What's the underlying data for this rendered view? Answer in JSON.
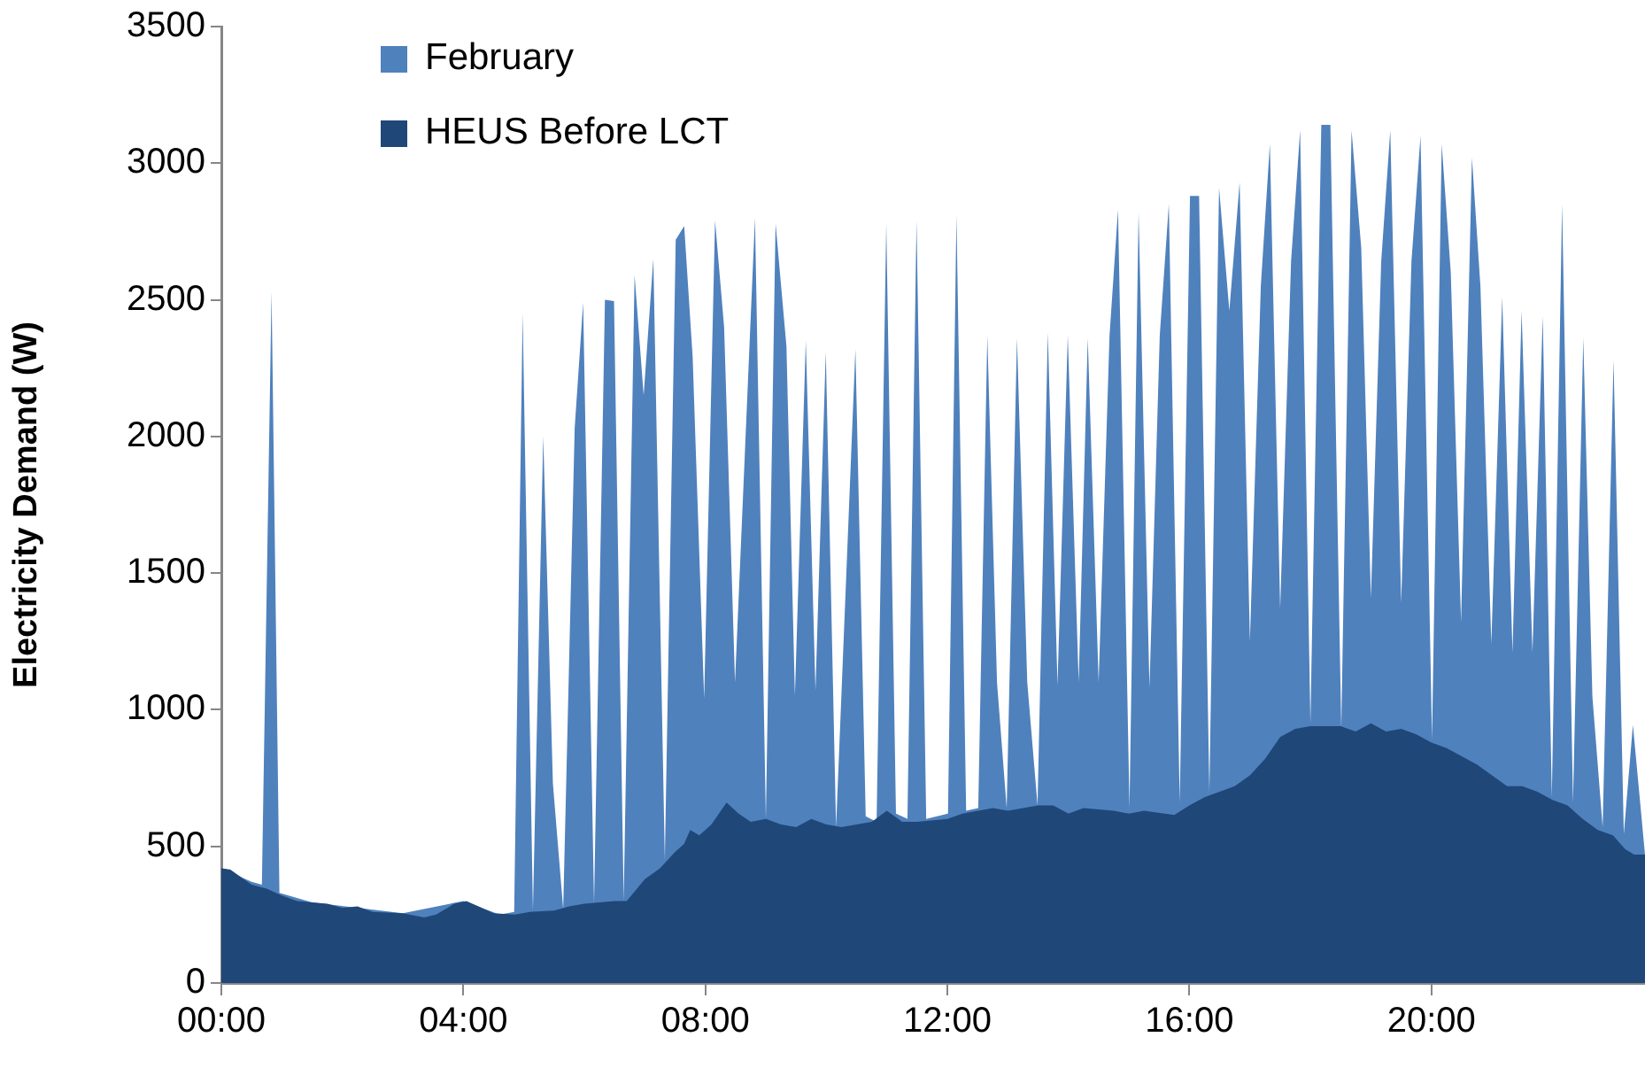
{
  "chart_data": {
    "type": "area",
    "ylabel": "Electricity Demand (W)",
    "xlim": [
      0,
      23.53
    ],
    "ylim": [
      0,
      3500
    ],
    "xticks": [
      {
        "value": 0,
        "label": "00:00"
      },
      {
        "value": 4,
        "label": "04:00"
      },
      {
        "value": 8,
        "label": "08:00"
      },
      {
        "value": 12,
        "label": "12:00"
      },
      {
        "value": 16,
        "label": "16:00"
      },
      {
        "value": 20,
        "label": "20:00"
      }
    ],
    "yticks": [
      0,
      500,
      1000,
      1500,
      2000,
      2500,
      3000,
      3500
    ],
    "grid": false,
    "legend": "top left",
    "marker": "none",
    "series": [
      {
        "name": "February",
        "color": "#4f81bd",
        "x": [
          0,
          0.5,
          0.67,
          0.83,
          0.96,
          1.5,
          3,
          4,
          4.6,
          4.84,
          4.98,
          5.15,
          5.32,
          5.48,
          5.65,
          5.84,
          5.98,
          6.16,
          6.34,
          6.49,
          6.65,
          6.83,
          6.98,
          7.14,
          7.33,
          7.51,
          7.65,
          7.79,
          7.98,
          8.16,
          8.31,
          8.49,
          8.82,
          9.0,
          9.16,
          9.34,
          9.48,
          9.66,
          9.82,
          9.99,
          10.16,
          10.48,
          10.65,
          10.83,
          10.99,
          11.15,
          11.34,
          11.49,
          11.65,
          12.01,
          12.15,
          12.31,
          12.51,
          12.66,
          12.82,
          12.98,
          13.15,
          13.32,
          13.49,
          13.66,
          13.82,
          13.99,
          14.17,
          14.32,
          14.5,
          14.68,
          14.82,
          15.01,
          15.16,
          15.34,
          15.51,
          15.66,
          15.84,
          16.01,
          16.16,
          16.33,
          16.49,
          16.66,
          16.83,
          17.0,
          17.18,
          17.33,
          17.5,
          17.68,
          17.83,
          18.0,
          18.18,
          18.33,
          18.51,
          18.68,
          18.84,
          19.0,
          19.17,
          19.32,
          19.5,
          19.67,
          19.82,
          20.01,
          20.17,
          20.32,
          20.49,
          20.67,
          20.81,
          20.99,
          21.17,
          21.34,
          21.49,
          21.67,
          21.84,
          21.99,
          22.16,
          22.34,
          22.51,
          22.66,
          22.83,
          23.01,
          23.18,
          23.33,
          23.53
        ],
        "values": [
          420,
          370,
          360,
          2530,
          330,
          295,
          255,
          300,
          250,
          260,
          2450,
          265,
          2000,
          730,
          270,
          2030,
          2490,
          290,
          2500,
          2495,
          300,
          2590,
          2150,
          2650,
          450,
          2720,
          2770,
          2290,
          1040,
          2790,
          2400,
          1100,
          2800,
          600,
          2780,
          2330,
          1050,
          2350,
          1070,
          2310,
          570,
          2320,
          610,
          590,
          2780,
          620,
          600,
          2790,
          600,
          620,
          2810,
          630,
          640,
          2370,
          1100,
          640,
          2360,
          1100,
          650,
          2380,
          1090,
          2370,
          1100,
          2360,
          1100,
          2370,
          2830,
          640,
          2820,
          1080,
          2370,
          2850,
          660,
          2880,
          2880,
          700,
          2910,
          2460,
          2930,
          1250,
          2550,
          3070,
          1370,
          2640,
          3120,
          950,
          3140,
          3140,
          930,
          3120,
          2690,
          1410,
          2640,
          3120,
          1390,
          2640,
          3100,
          890,
          3070,
          2600,
          1320,
          3020,
          2550,
          1240,
          2510,
          1210,
          2460,
          1210,
          2440,
          680,
          2850,
          660,
          2360,
          1050,
          570,
          2280,
          545,
          945,
          470
        ]
      },
      {
        "name": "HEUS Before LCT",
        "color": "#1f4778",
        "x": [
          0,
          0.15,
          0.5,
          0.75,
          1,
          1.25,
          1.75,
          2,
          2.25,
          2.5,
          3,
          3.35,
          3.55,
          3.85,
          4.05,
          4.25,
          4.5,
          4.85,
          5.1,
          5.5,
          5.75,
          6,
          6.5,
          6.7,
          7,
          7.25,
          7.5,
          7.65,
          7.75,
          7.9,
          8.1,
          8.35,
          8.55,
          8.75,
          9.0,
          9.25,
          9.5,
          9.75,
          10.0,
          10.25,
          10.75,
          11.0,
          11.25,
          11.5,
          12.0,
          12.25,
          12.75,
          13.0,
          13.5,
          13.75,
          14.0,
          14.25,
          14.75,
          15.0,
          15.25,
          15.75,
          16.0,
          16.25,
          16.5,
          16.75,
          17.0,
          17.25,
          17.5,
          17.75,
          18.0,
          18.5,
          18.75,
          19.0,
          19.25,
          19.5,
          19.75,
          20.0,
          20.25,
          20.5,
          20.75,
          21.0,
          21.25,
          21.5,
          21.75,
          22.0,
          22.25,
          22.5,
          22.75,
          23.0,
          23.2,
          23.35,
          23.53
        ],
        "values": [
          420,
          415,
          360,
          345,
          320,
          300,
          290,
          275,
          280,
          260,
          255,
          240,
          250,
          290,
          300,
          280,
          255,
          250,
          260,
          265,
          280,
          290,
          300,
          300,
          380,
          420,
          480,
          510,
          560,
          540,
          580,
          660,
          620,
          590,
          600,
          580,
          570,
          600,
          580,
          570,
          590,
          630,
          590,
          590,
          600,
          620,
          640,
          630,
          650,
          650,
          620,
          640,
          630,
          620,
          630,
          615,
          650,
          680,
          700,
          720,
          760,
          820,
          900,
          930,
          940,
          940,
          920,
          950,
          920,
          930,
          910,
          880,
          860,
          830,
          800,
          760,
          720,
          720,
          700,
          670,
          650,
          600,
          560,
          540,
          490,
          470,
          470
        ]
      }
    ]
  }
}
